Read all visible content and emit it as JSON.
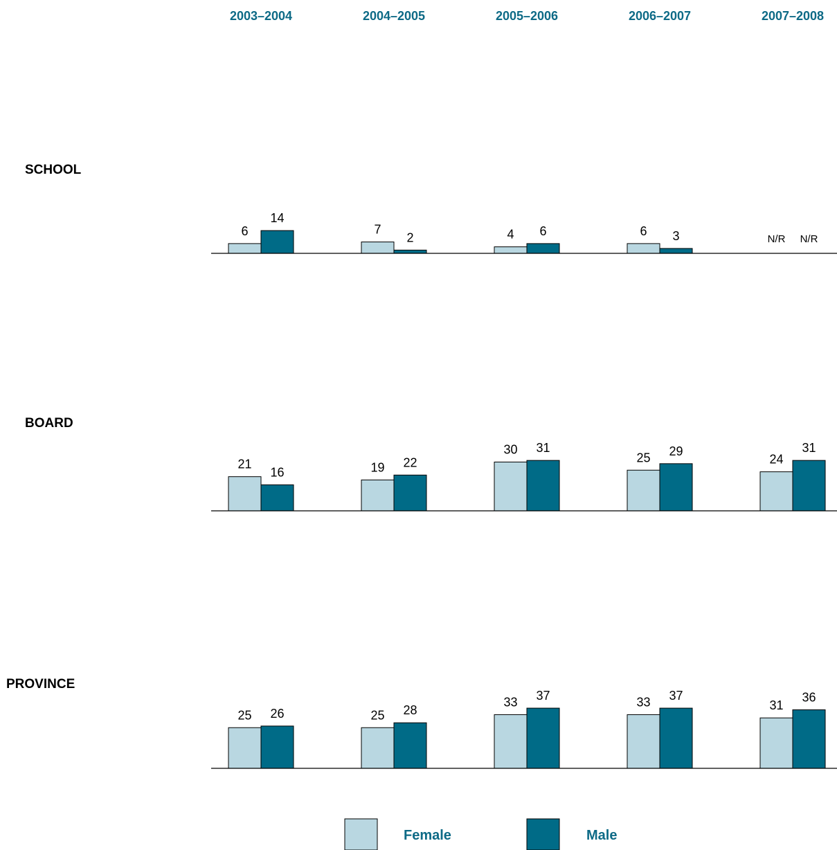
{
  "colors": {
    "female": "#b9d7e1",
    "male": "#006b87",
    "header": "#0d6a86"
  },
  "chart_data": {
    "type": "bar",
    "categories": [
      "2003–2004",
      "2004–2005",
      "2005–2006",
      "2006–2007",
      "2007–2008"
    ],
    "legend": [
      "Female",
      "Male"
    ],
    "legend_position": "bottom",
    "grid": false,
    "panels": [
      {
        "label": "SCHOOL",
        "series": [
          {
            "name": "Female",
            "values": [
              6,
              7,
              4,
              6,
              null
            ],
            "labels": [
              "6",
              "7",
              "4",
              "6",
              "N/R"
            ]
          },
          {
            "name": "Male",
            "values": [
              14,
              2,
              6,
              3,
              null
            ],
            "labels": [
              "14",
              "2",
              "6",
              "3",
              "N/R"
            ]
          }
        ]
      },
      {
        "label": "BOARD",
        "series": [
          {
            "name": "Female",
            "values": [
              21,
              19,
              30,
              25,
              24
            ],
            "labels": [
              "21",
              "19",
              "30",
              "25",
              "24"
            ]
          },
          {
            "name": "Male",
            "values": [
              16,
              22,
              31,
              29,
              31
            ],
            "labels": [
              "16",
              "22",
              "31",
              "29",
              "31"
            ]
          }
        ]
      },
      {
        "label": "PROVINCE",
        "series": [
          {
            "name": "Female",
            "values": [
              25,
              25,
              33,
              33,
              31
            ],
            "labels": [
              "25",
              "25",
              "33",
              "33",
              "31"
            ]
          },
          {
            "name": "Male",
            "values": [
              26,
              28,
              37,
              37,
              36
            ],
            "labels": [
              "26",
              "28",
              "37",
              "37",
              "36"
            ]
          }
        ]
      }
    ]
  }
}
